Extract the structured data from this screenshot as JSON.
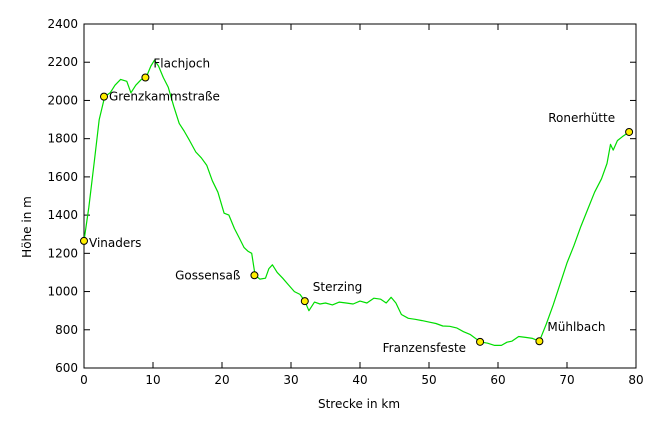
{
  "chart_data": {
    "type": "line",
    "title": "",
    "xlabel": "Strecke in km",
    "ylabel": "Höhe in m",
    "xlim": [
      0,
      80
    ],
    "ylim": [
      600,
      2400
    ],
    "xticks": [
      0,
      10,
      20,
      30,
      40,
      50,
      60,
      70,
      80
    ],
    "yticks": [
      600,
      800,
      1000,
      1200,
      1400,
      1600,
      1800,
      2000,
      2200,
      2400
    ],
    "grid": false,
    "legend": "none",
    "colors": {
      "line": "#00dd00",
      "marker_fill": "#ffee00",
      "marker_stroke": "#000000",
      "axis": "#000000"
    },
    "series": [
      {
        "points": [
          [
            0,
            1265
          ],
          [
            0.7,
            1440
          ],
          [
            1.5,
            1680
          ],
          [
            2.2,
            1900
          ],
          [
            3,
            2020
          ],
          [
            3.8,
            2040
          ],
          [
            4.5,
            2080
          ],
          [
            5.3,
            2110
          ],
          [
            6.2,
            2100
          ],
          [
            6.8,
            2040
          ],
          [
            7.5,
            2080
          ],
          [
            8.3,
            2110
          ],
          [
            9,
            2120
          ],
          [
            9.7,
            2180
          ],
          [
            10.2,
            2210
          ],
          [
            10.8,
            2180
          ],
          [
            11.5,
            2120
          ],
          [
            12.2,
            2070
          ],
          [
            13,
            1970
          ],
          [
            13.8,
            1880
          ],
          [
            14.5,
            1840
          ],
          [
            15.3,
            1790
          ],
          [
            16.2,
            1730
          ],
          [
            17,
            1700
          ],
          [
            17.8,
            1660
          ],
          [
            18.6,
            1580
          ],
          [
            19.4,
            1520
          ],
          [
            20.3,
            1410
          ],
          [
            21,
            1400
          ],
          [
            21.8,
            1330
          ],
          [
            22.5,
            1280
          ],
          [
            23.2,
            1230
          ],
          [
            23.8,
            1210
          ],
          [
            24.3,
            1200
          ],
          [
            24.8,
            1085
          ],
          [
            25.5,
            1065
          ],
          [
            26.3,
            1070
          ],
          [
            26.8,
            1120
          ],
          [
            27.3,
            1140
          ],
          [
            28,
            1100
          ],
          [
            28.8,
            1070
          ],
          [
            29.5,
            1040
          ],
          [
            30.5,
            1000
          ],
          [
            31.3,
            985
          ],
          [
            32,
            950
          ],
          [
            32.6,
            900
          ],
          [
            33.4,
            945
          ],
          [
            34.2,
            935
          ],
          [
            35,
            940
          ],
          [
            36,
            930
          ],
          [
            37,
            945
          ],
          [
            38,
            940
          ],
          [
            39,
            935
          ],
          [
            40,
            950
          ],
          [
            41,
            940
          ],
          [
            42,
            965
          ],
          [
            43,
            960
          ],
          [
            43.8,
            940
          ],
          [
            44.5,
            970
          ],
          [
            45.2,
            940
          ],
          [
            46,
            880
          ],
          [
            47,
            860
          ],
          [
            48,
            855
          ],
          [
            49,
            848
          ],
          [
            50,
            840
          ],
          [
            51,
            833
          ],
          [
            52,
            820
          ],
          [
            53,
            818
          ],
          [
            54,
            810
          ],
          [
            55,
            790
          ],
          [
            56,
            775
          ],
          [
            57.4,
            737
          ],
          [
            58.5,
            730
          ],
          [
            59.5,
            718
          ],
          [
            60.5,
            718
          ],
          [
            61.3,
            735
          ],
          [
            62,
            740
          ],
          [
            63,
            765
          ],
          [
            64,
            760
          ],
          [
            65,
            755
          ],
          [
            66,
            740
          ],
          [
            67,
            830
          ],
          [
            68,
            930
          ],
          [
            69,
            1040
          ],
          [
            70,
            1150
          ],
          [
            71,
            1240
          ],
          [
            72,
            1340
          ],
          [
            73,
            1430
          ],
          [
            74,
            1520
          ],
          [
            75,
            1590
          ],
          [
            75.8,
            1670
          ],
          [
            76.3,
            1770
          ],
          [
            76.7,
            1740
          ],
          [
            77.3,
            1790
          ],
          [
            78,
            1810
          ],
          [
            79,
            1835
          ]
        ]
      }
    ],
    "waypoints": [
      {
        "name": "Vinaders",
        "x": 0,
        "y": 1265,
        "label_pos": "right-below"
      },
      {
        "name": "Grenzkammstraße",
        "x": 2.9,
        "y": 2020,
        "label_pos": "right"
      },
      {
        "name": "Flachjoch",
        "x": 8.9,
        "y": 2120,
        "label_pos": "right-above"
      },
      {
        "name": "Gossensaß",
        "x": 24.7,
        "y": 1085,
        "label_pos": "left"
      },
      {
        "name": "Sterzing",
        "x": 32,
        "y": 950,
        "label_pos": "right-above"
      },
      {
        "name": "Franzensfeste",
        "x": 57.4,
        "y": 737,
        "label_pos": "left-below"
      },
      {
        "name": "Mühlbach",
        "x": 66,
        "y": 740,
        "label_pos": "right-above"
      },
      {
        "name": "Ronerhütte",
        "x": 79,
        "y": 1835,
        "label_pos": "left-above"
      }
    ]
  }
}
